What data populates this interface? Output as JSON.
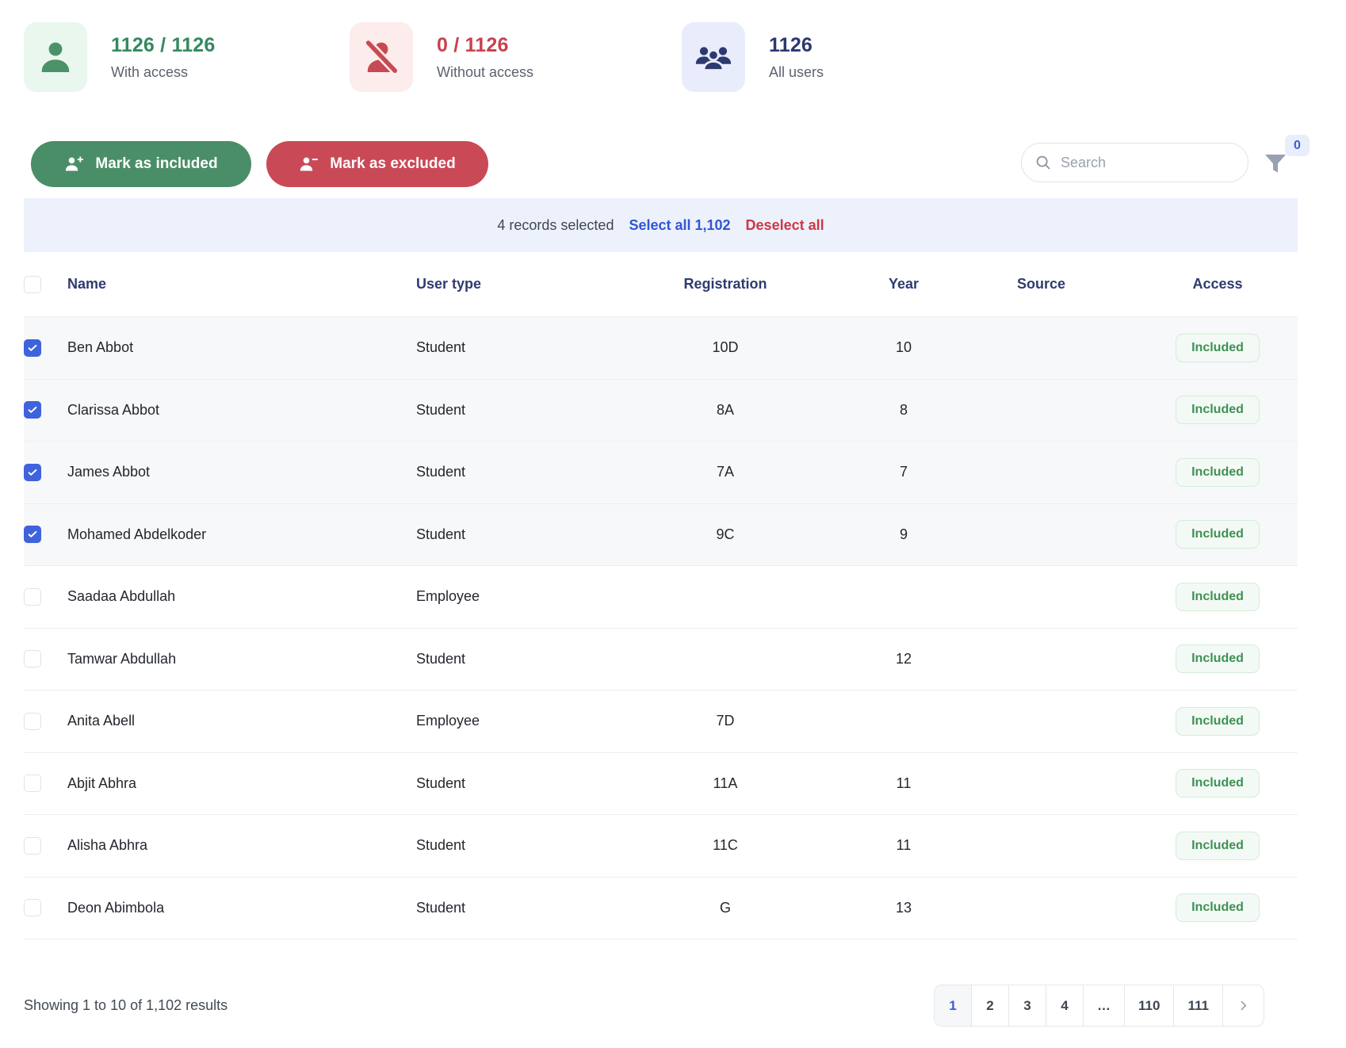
{
  "stats": {
    "with_access": {
      "value": "1126 / 1126",
      "label": "With access"
    },
    "without_access": {
      "value": "0 / 1126",
      "label": "Without access"
    },
    "all_users": {
      "value": "1126",
      "label": "All users"
    }
  },
  "toolbar": {
    "include_label": "Mark as included",
    "exclude_label": "Mark as excluded",
    "search_placeholder": "Search",
    "search_value": "",
    "filter_count": "0"
  },
  "selection_bar": {
    "selected_text": "4 records selected",
    "select_all_label": "Select all 1,102",
    "deselect_all_label": "Deselect all"
  },
  "table": {
    "columns": [
      "Name",
      "User type",
      "Registration",
      "Year",
      "Source",
      "Access"
    ],
    "rows": [
      {
        "name": "Ben Abbot",
        "user_type": "Student",
        "registration": "10D",
        "year": "10",
        "source": "",
        "access": "Included",
        "checked": true
      },
      {
        "name": "Clarissa Abbot",
        "user_type": "Student",
        "registration": "8A",
        "year": "8",
        "source": "",
        "access": "Included",
        "checked": true
      },
      {
        "name": "James Abbot",
        "user_type": "Student",
        "registration": "7A",
        "year": "7",
        "source": "",
        "access": "Included",
        "checked": true
      },
      {
        "name": "Mohamed Abdelkoder",
        "user_type": "Student",
        "registration": "9C",
        "year": "9",
        "source": "",
        "access": "Included",
        "checked": true
      },
      {
        "name": "Saadaa Abdullah",
        "user_type": "Employee",
        "registration": "",
        "year": "",
        "source": "",
        "access": "Included",
        "checked": false
      },
      {
        "name": "Tamwar Abdullah",
        "user_type": "Student",
        "registration": "",
        "year": "12",
        "source": "",
        "access": "Included",
        "checked": false
      },
      {
        "name": "Anita Abell",
        "user_type": "Employee",
        "registration": "7D",
        "year": "",
        "source": "",
        "access": "Included",
        "checked": false
      },
      {
        "name": "Abjit Abhra",
        "user_type": "Student",
        "registration": "11A",
        "year": "11",
        "source": "",
        "access": "Included",
        "checked": false
      },
      {
        "name": "Alisha Abhra",
        "user_type": "Student",
        "registration": "11C",
        "year": "11",
        "source": "",
        "access": "Included",
        "checked": false
      },
      {
        "name": "Deon Abimbola",
        "user_type": "Student",
        "registration": "G",
        "year": "13",
        "source": "",
        "access": "Included",
        "checked": false
      }
    ]
  },
  "footer": {
    "summary": "Showing 1 to 10 of 1,102 results",
    "pages": [
      "1",
      "2",
      "3",
      "4",
      "…",
      "110",
      "111"
    ],
    "active_page": "1"
  },
  "colors": {
    "green": "#338a5e",
    "green_button": "#4a8e67",
    "green_tile": "#e9f7ef",
    "red": "#c8414f",
    "red_button": "#c94a56",
    "red_tile": "#fdecec",
    "navy": "#2b3770",
    "navy_tile": "#e9edfb",
    "checkbox_blue": "#3e63dd",
    "link_blue": "#3155d6",
    "link_red": "#cf3742",
    "selection_bar_bg": "#edf1fb",
    "badge_green_text": "#3f9153",
    "badge_green_bg": "#f3faf5"
  }
}
